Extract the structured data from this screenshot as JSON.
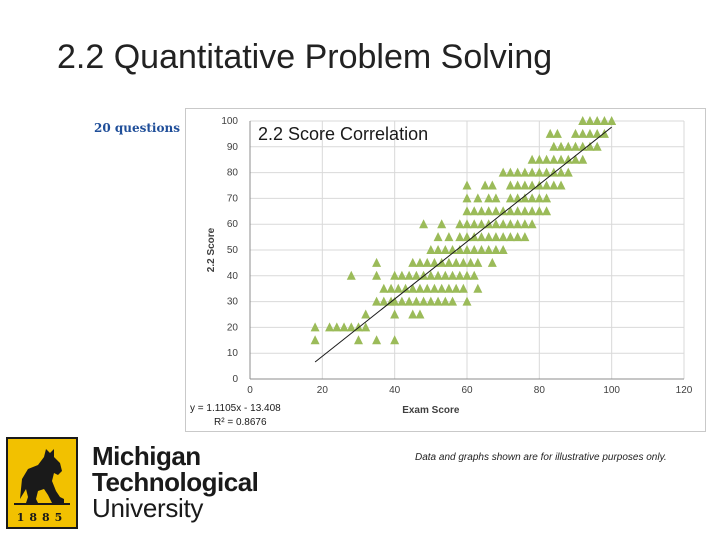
{
  "slide": {
    "title": "2.2 Quantitative Problem Solving",
    "question_note": "20 questions",
    "disclaimer": "Data and graphs shown are for illustrative purposes only."
  },
  "logo": {
    "line1": "Michigan",
    "line2": "Technological",
    "line3": "University",
    "year": "1885",
    "colors": {
      "seal": "#f2c100",
      "ink": "#1a1a1a"
    }
  },
  "chart_data": {
    "type": "scatter",
    "title": "2.2 Score Correlation",
    "xlabel": "Exam Score",
    "ylabel": "2.2 Score",
    "xlim": [
      0,
      120
    ],
    "ylim": [
      0,
      100
    ],
    "xticks": [
      0,
      20,
      40,
      60,
      80,
      100,
      120
    ],
    "yticks": [
      0,
      10,
      20,
      30,
      40,
      50,
      60,
      70,
      80,
      90,
      100
    ],
    "grid": true,
    "marker": "triangle",
    "marker_color": "#9bbb59",
    "trendline": {
      "slope": 1.1105,
      "intercept": -13.408,
      "x_range": [
        18,
        100
      ]
    },
    "equation_text": "y = 1.1105x - 13.408",
    "r2_text": "R² = 0.8676",
    "points": [
      [
        18,
        20
      ],
      [
        18,
        15
      ],
      [
        22,
        20
      ],
      [
        24,
        20
      ],
      [
        26,
        20
      ],
      [
        28,
        20
      ],
      [
        30,
        20
      ],
      [
        32,
        25
      ],
      [
        30,
        15
      ],
      [
        35,
        15
      ],
      [
        40,
        15
      ],
      [
        28,
        40
      ],
      [
        35,
        45
      ],
      [
        35,
        40
      ],
      [
        37,
        35
      ],
      [
        39,
        35
      ],
      [
        35,
        30
      ],
      [
        37,
        30
      ],
      [
        39,
        30
      ],
      [
        32,
        20
      ],
      [
        40,
        25
      ],
      [
        45,
        25
      ],
      [
        47,
        25
      ],
      [
        40,
        40
      ],
      [
        42,
        40
      ],
      [
        44,
        40
      ],
      [
        46,
        40
      ],
      [
        48,
        40
      ],
      [
        50,
        40
      ],
      [
        52,
        40
      ],
      [
        54,
        40
      ],
      [
        56,
        40
      ],
      [
        58,
        40
      ],
      [
        60,
        40
      ],
      [
        62,
        40
      ],
      [
        40,
        30
      ],
      [
        42,
        30
      ],
      [
        44,
        30
      ],
      [
        46,
        30
      ],
      [
        48,
        30
      ],
      [
        50,
        30
      ],
      [
        52,
        30
      ],
      [
        54,
        30
      ],
      [
        56,
        30
      ],
      [
        60,
        30
      ],
      [
        41,
        35
      ],
      [
        43,
        35
      ],
      [
        45,
        35
      ],
      [
        47,
        35
      ],
      [
        49,
        35
      ],
      [
        51,
        35
      ],
      [
        53,
        35
      ],
      [
        55,
        35
      ],
      [
        57,
        35
      ],
      [
        59,
        35
      ],
      [
        63,
        35
      ],
      [
        45,
        45
      ],
      [
        47,
        45
      ],
      [
        49,
        45
      ],
      [
        51,
        45
      ],
      [
        53,
        45
      ],
      [
        55,
        45
      ],
      [
        57,
        45
      ],
      [
        59,
        45
      ],
      [
        61,
        45
      ],
      [
        63,
        45
      ],
      [
        67,
        45
      ],
      [
        50,
        50
      ],
      [
        52,
        50
      ],
      [
        54,
        50
      ],
      [
        56,
        50
      ],
      [
        58,
        50
      ],
      [
        60,
        50
      ],
      [
        62,
        50
      ],
      [
        64,
        50
      ],
      [
        66,
        50
      ],
      [
        68,
        50
      ],
      [
        70,
        50
      ],
      [
        52,
        55
      ],
      [
        55,
        55
      ],
      [
        58,
        55
      ],
      [
        60,
        55
      ],
      [
        62,
        55
      ],
      [
        64,
        55
      ],
      [
        66,
        55
      ],
      [
        68,
        55
      ],
      [
        70,
        55
      ],
      [
        72,
        55
      ],
      [
        74,
        55
      ],
      [
        76,
        55
      ],
      [
        48,
        60
      ],
      [
        53,
        60
      ],
      [
        58,
        60
      ],
      [
        60,
        60
      ],
      [
        62,
        60
      ],
      [
        64,
        60
      ],
      [
        66,
        60
      ],
      [
        68,
        60
      ],
      [
        70,
        60
      ],
      [
        72,
        60
      ],
      [
        74,
        60
      ],
      [
        76,
        60
      ],
      [
        78,
        60
      ],
      [
        60,
        65
      ],
      [
        62,
        65
      ],
      [
        64,
        65
      ],
      [
        66,
        65
      ],
      [
        68,
        65
      ],
      [
        70,
        65
      ],
      [
        72,
        65
      ],
      [
        74,
        65
      ],
      [
        76,
        65
      ],
      [
        78,
        65
      ],
      [
        80,
        65
      ],
      [
        82,
        65
      ],
      [
        60,
        70
      ],
      [
        63,
        70
      ],
      [
        66,
        70
      ],
      [
        68,
        70
      ],
      [
        72,
        70
      ],
      [
        74,
        70
      ],
      [
        76,
        70
      ],
      [
        78,
        70
      ],
      [
        80,
        70
      ],
      [
        82,
        70
      ],
      [
        60,
        75
      ],
      [
        65,
        75
      ],
      [
        67,
        75
      ],
      [
        72,
        75
      ],
      [
        74,
        75
      ],
      [
        76,
        75
      ],
      [
        78,
        75
      ],
      [
        80,
        75
      ],
      [
        82,
        75
      ],
      [
        84,
        75
      ],
      [
        86,
        75
      ],
      [
        70,
        80
      ],
      [
        72,
        80
      ],
      [
        74,
        80
      ],
      [
        76,
        80
      ],
      [
        78,
        80
      ],
      [
        80,
        80
      ],
      [
        82,
        80
      ],
      [
        84,
        80
      ],
      [
        86,
        80
      ],
      [
        88,
        80
      ],
      [
        78,
        85
      ],
      [
        80,
        85
      ],
      [
        82,
        85
      ],
      [
        84,
        85
      ],
      [
        86,
        85
      ],
      [
        88,
        85
      ],
      [
        90,
        85
      ],
      [
        92,
        85
      ],
      [
        84,
        90
      ],
      [
        86,
        90
      ],
      [
        88,
        90
      ],
      [
        90,
        90
      ],
      [
        92,
        90
      ],
      [
        94,
        90
      ],
      [
        96,
        90
      ],
      [
        83,
        95
      ],
      [
        85,
        95
      ],
      [
        90,
        95
      ],
      [
        92,
        95
      ],
      [
        94,
        95
      ],
      [
        96,
        95
      ],
      [
        98,
        95
      ],
      [
        92,
        100
      ],
      [
        94,
        100
      ],
      [
        96,
        100
      ],
      [
        98,
        100
      ],
      [
        100,
        100
      ]
    ]
  }
}
